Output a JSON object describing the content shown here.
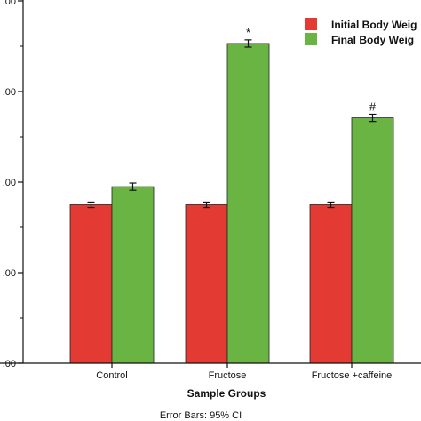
{
  "chart_data": {
    "type": "bar",
    "categories": [
      "Control",
      "Fructose",
      "Fructose +caffeine"
    ],
    "series": [
      {
        "name": "Initial Body Weig",
        "color": "#e33a33",
        "values": [
          175,
          175,
          175
        ],
        "err": [
          3,
          3,
          3
        ]
      },
      {
        "name": "Final Body Weig",
        "color": "#6ab443",
        "values": [
          195,
          353,
          271
        ],
        "err": [
          4,
          4,
          4
        ]
      }
    ],
    "annotations": [
      "",
      "*",
      "#"
    ],
    "ytick_labels": [
      ".00",
      ".00",
      ".00",
      ".00",
      ".00"
    ],
    "ytick_values": [
      0,
      100,
      200,
      300,
      400
    ],
    "ylim": [
      0,
      400
    ],
    "xlabel": "Sample Groups",
    "ylabel": "",
    "footnote": "Error Bars: 95% CI",
    "legend_position": "top-right",
    "grid": false
  }
}
